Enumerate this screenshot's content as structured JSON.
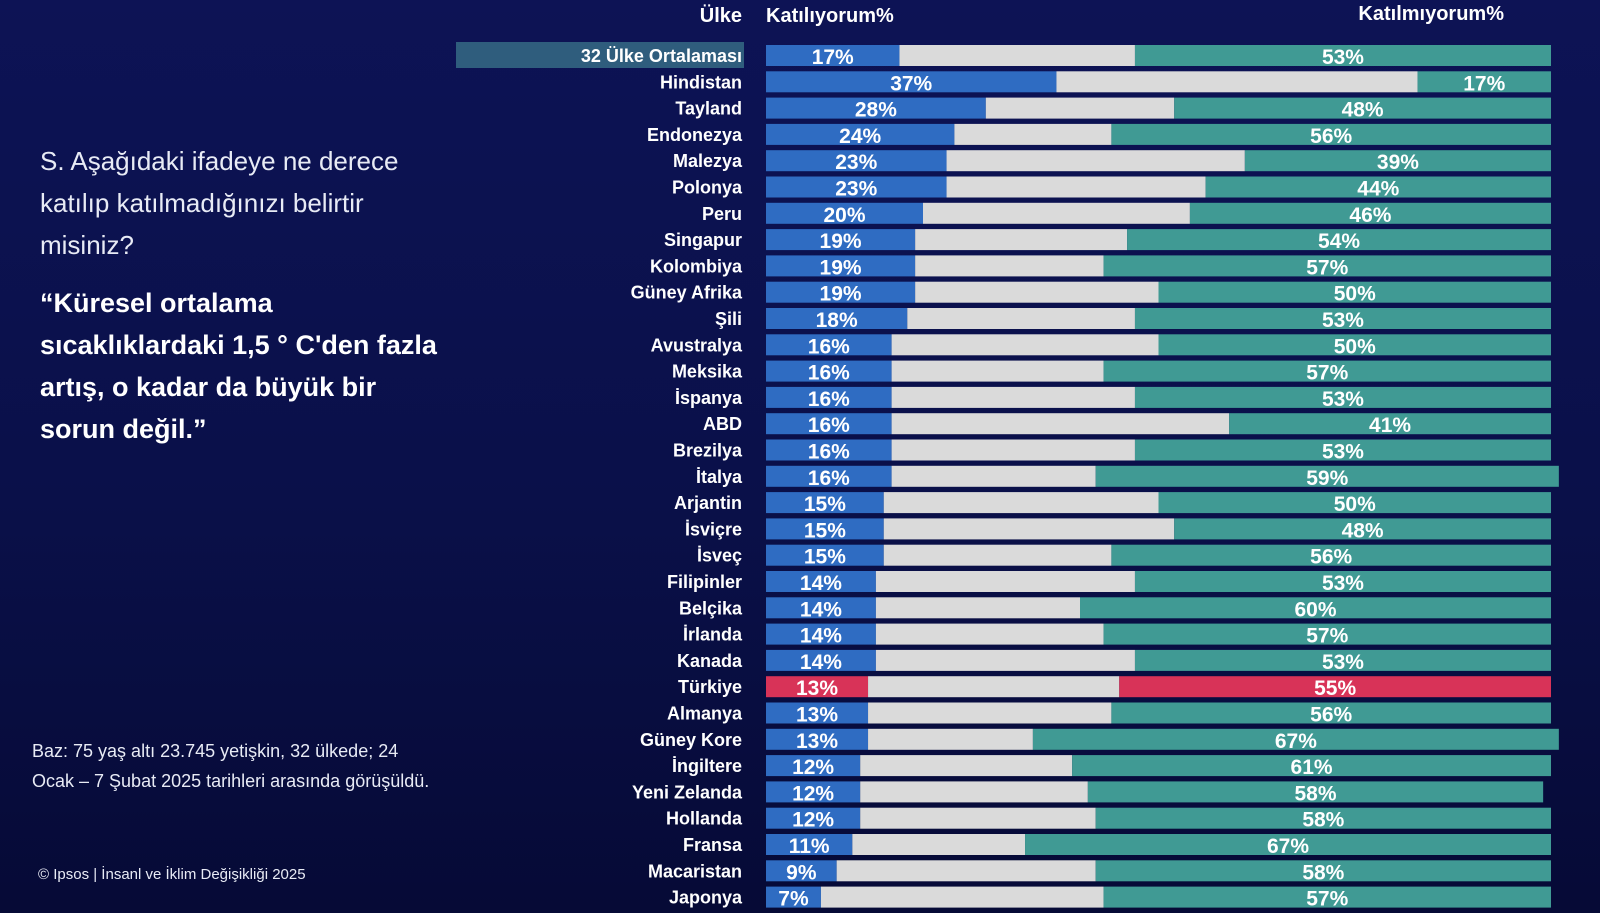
{
  "question": "S. Aşağıdaki ifadeye ne derece katılıp katılmadığınızı belirtir misiniz?",
  "statement": "“Küresel ortalama sıcaklıklardaki 1,5 ° C'den fazla artış, o kadar da büyük bir sorun değil.”",
  "base_note": "Baz: 75 yaş altı 23.745 yetişkin, 32 ülkede; 24 Ocak – 7 Şubat 2025 tarihleri arasında görüşüldü.",
  "copyright": "© Ipsos | İnsanl ve İklim Değişikliği 2025",
  "colors": {
    "agree": "#2f6cc2",
    "neutral": "#dadada",
    "disagree": "#409a94",
    "highlight": "#d83358",
    "average_label_bg": "#2f5d7d"
  },
  "chart_data": {
    "type": "bar",
    "stacked": true,
    "orientation": "horizontal",
    "category_header": "Ülke",
    "agree_header": "Katılıyorum%",
    "disagree_header": "Katılmıyorum%",
    "xlim": [
      0,
      100
    ],
    "highlighted_category": "Türkiye",
    "average_category": "32 Ülke Ortalaması",
    "categories": [
      "32 Ülke Ortalaması",
      "Hindistan",
      "Tayland",
      "Endonezya",
      "Malezya",
      "Polonya",
      "Peru",
      "Singapur",
      "Kolombiya",
      "Güney Afrika",
      "Şili",
      "Avustralya",
      "Meksika",
      "İspanya",
      "ABD",
      "Brezilya",
      "İtalya",
      "Arjantin",
      "İsviçre",
      "İsveç",
      "Filipinler",
      "Belçika",
      "İrlanda",
      "Kanada",
      "Türkiye",
      "Almanya",
      "Güney Kore",
      "İngiltere",
      "Yeni Zelanda",
      "Hollanda",
      "Fransa",
      "Macaristan",
      "Japonya"
    ],
    "series": [
      {
        "name": "Katılıyorum%",
        "values": [
          17,
          37,
          28,
          24,
          23,
          23,
          20,
          19,
          19,
          19,
          18,
          16,
          16,
          16,
          16,
          16,
          16,
          15,
          15,
          15,
          14,
          14,
          14,
          14,
          13,
          13,
          13,
          12,
          12,
          12,
          11,
          9,
          7
        ]
      },
      {
        "values": [
          30,
          46,
          24,
          20,
          38,
          33,
          34,
          27,
          24,
          31,
          29,
          34,
          27,
          31,
          43,
          31,
          26,
          35,
          37,
          29,
          33,
          26,
          29,
          33,
          32,
          31,
          21,
          27,
          29,
          30,
          22,
          33,
          36
        ]
      },
      {
        "name": "Katılmıyorum%",
        "values": [
          53,
          17,
          48,
          56,
          39,
          44,
          46,
          54,
          57,
          50,
          53,
          50,
          57,
          53,
          41,
          53,
          59,
          50,
          48,
          56,
          53,
          60,
          57,
          53,
          55,
          56,
          67,
          61,
          58,
          58,
          67,
          58,
          57
        ]
      }
    ]
  }
}
